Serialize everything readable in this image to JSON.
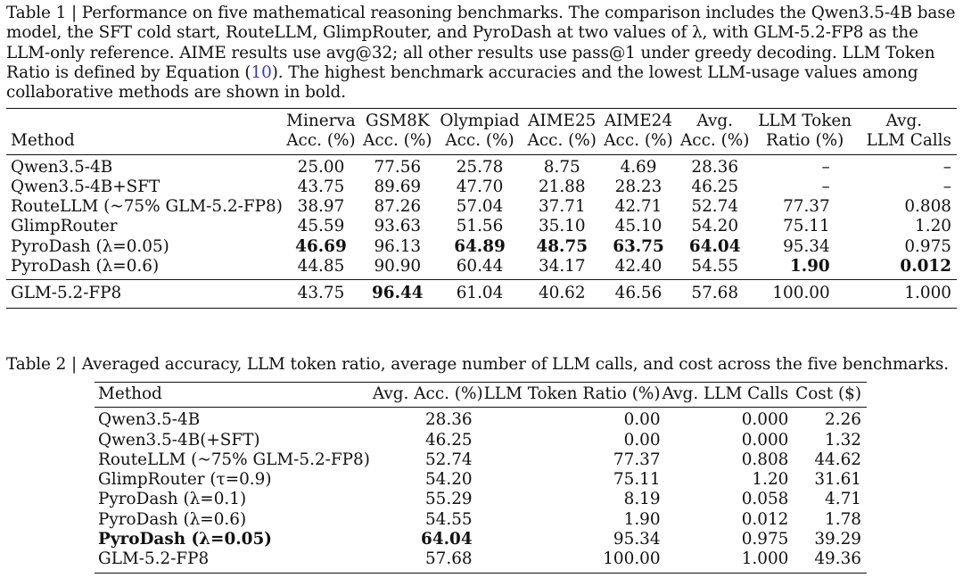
{
  "table1": {
    "label": "Table 1",
    "sep": "|",
    "caption_pre": "Performance on five mathematical reasoning benchmarks. The comparison includes the Qwen3.5-4B base model, the SFT cold start, RouteLLM, GlimpRouter, and PyroDash at two values of λ, with GLM-5.2-FP8 as the LLM-only reference. AIME results use avg@32; all other results use pass@1 under greedy decoding. LLM Token Ratio is defined by Equation (",
    "caption_ref": "10",
    "caption_post": "). The highest benchmark accuracies and the lowest LLM-usage values among collaborative methods are shown in bold.",
    "headers": [
      [
        "",
        "Method"
      ],
      [
        "Minerva",
        "Acc. (%)"
      ],
      [
        "GSM8K",
        "Acc. (%)"
      ],
      [
        "Olympiad",
        "Acc. (%)"
      ],
      [
        "AIME25",
        "Acc. (%)"
      ],
      [
        "AIME24",
        "Acc. (%)"
      ],
      [
        "Avg.",
        "Acc. (%)"
      ],
      [
        "LLM Token",
        "Ratio (%)"
      ],
      [
        "Avg.",
        "LLM Calls"
      ]
    ],
    "rows": [
      [
        "Qwen3.5-4B",
        "25.00",
        "77.56",
        "25.78",
        "8.75",
        "4.69",
        "28.36",
        "–",
        "–"
      ],
      [
        "Qwen3.5-4B+SFT",
        "43.75",
        "89.69",
        "47.70",
        "21.88",
        "28.23",
        "46.25",
        "–",
        "–"
      ],
      [
        "RouteLLM (~75% GLM-5.2-FP8)",
        "38.97",
        "87.26",
        "57.04",
        "37.71",
        "42.71",
        "52.74",
        "77.37",
        "0.808"
      ],
      [
        "GlimpRouter",
        "45.59",
        "93.63",
        "51.56",
        "35.10",
        "45.10",
        "54.20",
        "75.11",
        "1.20"
      ],
      [
        "PyroDash (λ=0.05)",
        "46.69",
        "96.13",
        "64.89",
        "48.75",
        "63.75",
        "64.04",
        "95.34",
        "0.975"
      ],
      [
        "PyroDash (λ=0.6)",
        "44.85",
        "90.90",
        "60.44",
        "34.17",
        "42.40",
        "54.55",
        "1.90",
        "0.012"
      ]
    ],
    "llm_row": [
      "GLM-5.2-FP8",
      "43.75",
      "96.44",
      "61.04",
      "40.62",
      "46.56",
      "57.68",
      "100.00",
      "1.000"
    ]
  },
  "table2": {
    "label": "Table 2",
    "sep": "|",
    "caption": "Averaged accuracy, LLM token ratio, average number of LLM calls, and cost across the five benchmarks.",
    "headers": [
      "Method",
      "Avg. Acc. (%)",
      "LLM Token Ratio (%)",
      "Avg. LLM Calls",
      "Cost ($)"
    ],
    "rows": [
      [
        "Qwen3.5-4B",
        "28.36",
        "0.00",
        "0.000",
        "2.26"
      ],
      [
        "Qwen3.5-4B(+SFT)",
        "46.25",
        "0.00",
        "0.000",
        "1.32"
      ],
      [
        "RouteLLM (~75% GLM-5.2-FP8)",
        "52.74",
        "77.37",
        "0.808",
        "44.62"
      ],
      [
        "GlimpRouter (τ=0.9)",
        "54.20",
        "75.11",
        "1.20",
        "31.61"
      ],
      [
        "PyroDash (λ=0.1)",
        "55.29",
        "8.19",
        "0.058",
        "4.71"
      ],
      [
        "PyroDash (λ=0.6)",
        "54.55",
        "1.90",
        "0.012",
        "1.78"
      ],
      [
        "PyroDash (λ=0.05)",
        "64.04",
        "95.34",
        "0.975",
        "39.29"
      ],
      [
        "GLM-5.2-FP8",
        "57.68",
        "100.00",
        "1.000",
        "49.36"
      ]
    ]
  }
}
